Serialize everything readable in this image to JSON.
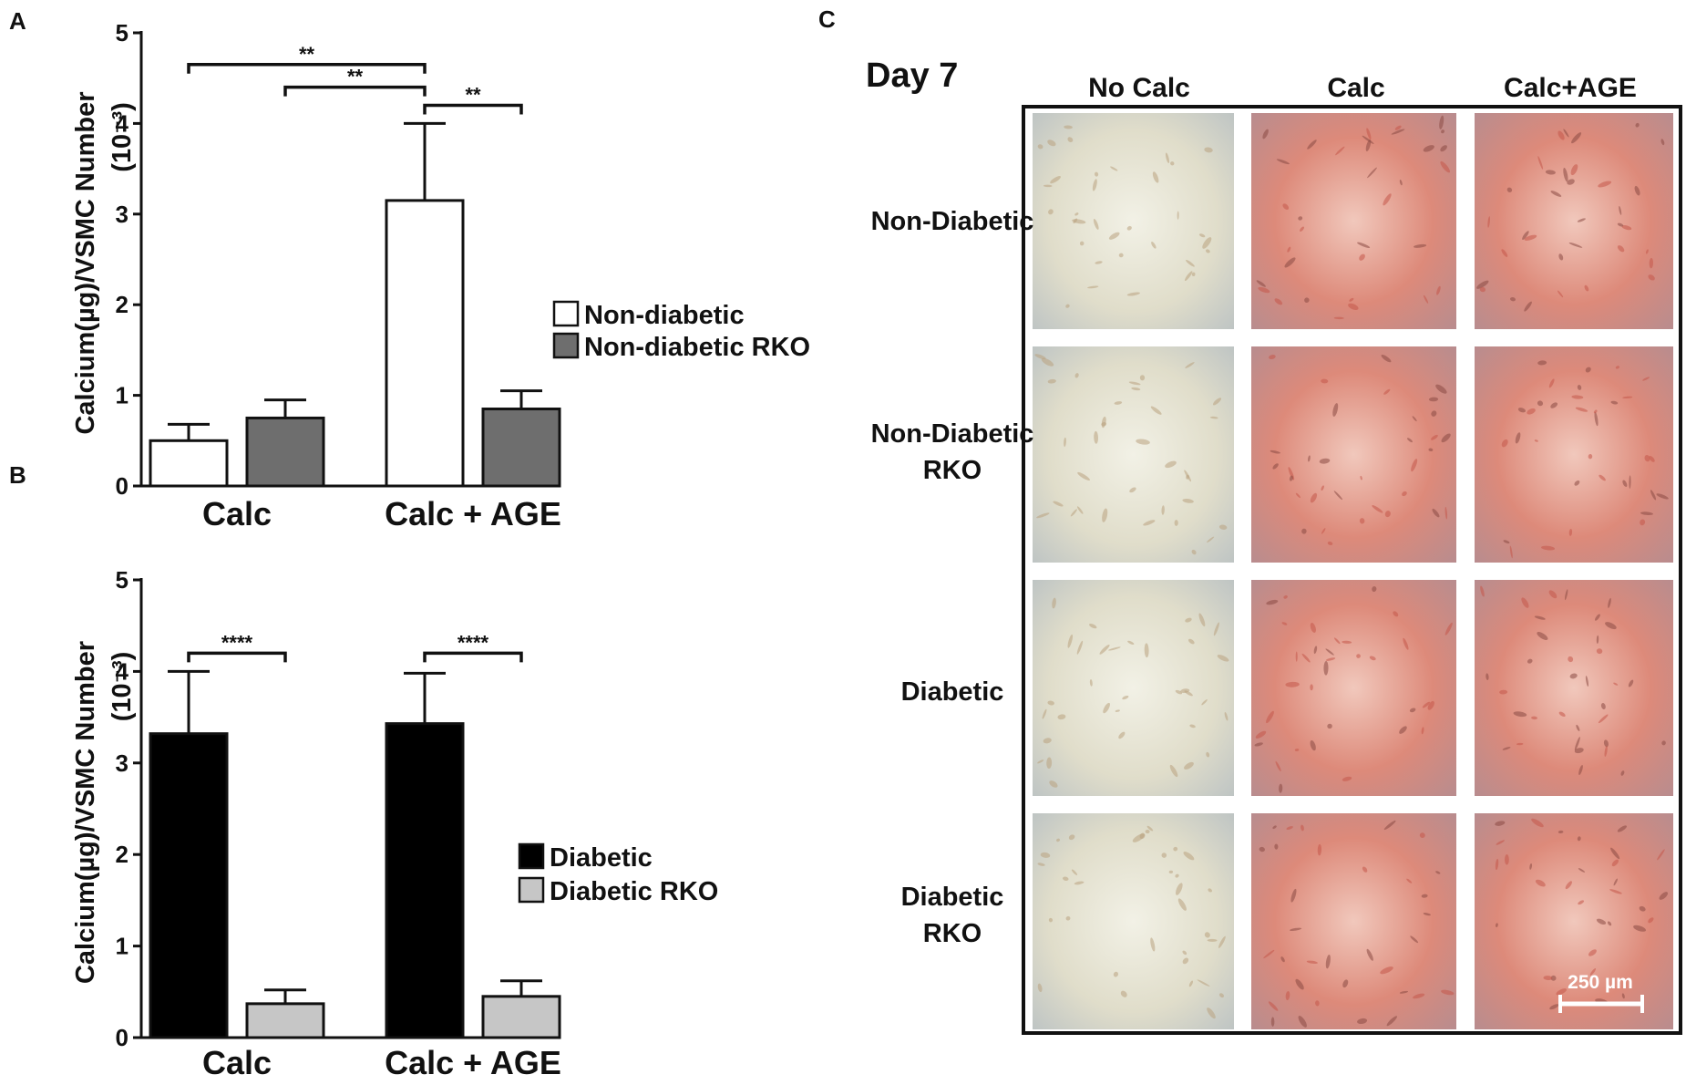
{
  "chart_data": [
    {
      "panel": "A",
      "type": "bar",
      "categories": [
        "Calc",
        "Calc + AGE"
      ],
      "series": [
        {
          "name": "Non-diabetic",
          "values": [
            0.5,
            3.15
          ],
          "errors": [
            0.18,
            0.85
          ],
          "color": "#ffffff"
        },
        {
          "name": "Non-diabetic RKO",
          "values": [
            0.75,
            0.85
          ],
          "errors": [
            0.2,
            0.2
          ],
          "color": "#6e6e6e"
        }
      ],
      "ylabel_line1": "Calcium(µg)/VSMC Number",
      "ylabel_line2": "(10⁻³)",
      "ylim": [
        0,
        5
      ],
      "yticks": [
        "0",
        "1",
        "2",
        "3",
        "4",
        "5"
      ],
      "legend_position": "right",
      "significance": [
        {
          "label": "**",
          "from_series": 0,
          "from_category": 0,
          "to_series": 0,
          "to_category": 1,
          "level": 4.65
        },
        {
          "label": "**",
          "from_series": 1,
          "from_category": 0,
          "to_series": 0,
          "to_category": 1,
          "level": 4.4
        },
        {
          "label": "**",
          "from_series": 0,
          "from_category": 1,
          "to_series": 1,
          "to_category": 1,
          "level": 4.2
        }
      ]
    },
    {
      "panel": "B",
      "type": "bar",
      "categories": [
        "Calc",
        "Calc + AGE"
      ],
      "series": [
        {
          "name": "Diabetic",
          "values": [
            3.32,
            3.43
          ],
          "errors": [
            0.68,
            0.55
          ],
          "color": "#000000"
        },
        {
          "name": "Diabetic RKO",
          "values": [
            0.37,
            0.45
          ],
          "errors": [
            0.15,
            0.17
          ],
          "color": "#c6c6c6"
        }
      ],
      "ylabel_line1": "Calcium(µg)/VSMC Number",
      "ylabel_line2": "(10⁻³)",
      "ylim": [
        0,
        5
      ],
      "yticks": [
        "0",
        "1",
        "2",
        "3",
        "4",
        "5"
      ],
      "legend_position": "right",
      "significance": [
        {
          "label": "****",
          "from_series": 0,
          "from_category": 0,
          "to_series": 1,
          "to_category": 0,
          "level": 4.2
        },
        {
          "label": "****",
          "from_series": 0,
          "from_category": 1,
          "to_series": 1,
          "to_category": 1,
          "level": 4.2
        }
      ]
    }
  ],
  "panel_labels": {
    "a": "A",
    "b": "B",
    "c": "C"
  },
  "micrograph_panel": {
    "day_label": "Day 7",
    "columns": [
      "No Calc",
      "Calc",
      "Calc+AGE"
    ],
    "rows": [
      {
        "line1": "Non-Diabetic",
        "line2": ""
      },
      {
        "line1": "Non-Diabetic",
        "line2": "RKO"
      },
      {
        "line1": "Diabetic",
        "line2": ""
      },
      {
        "line1": "Diabetic",
        "line2": "RKO"
      }
    ],
    "staining": [
      [
        "none",
        "calc",
        "calc"
      ],
      [
        "none",
        "calc",
        "calc"
      ],
      [
        "none",
        "calc",
        "calc"
      ],
      [
        "none",
        "calc",
        "calc"
      ]
    ],
    "stain_colors": {
      "none": "#e4e2d2",
      "calc": "#d88276"
    },
    "scale_bar_label": "250 µm"
  }
}
